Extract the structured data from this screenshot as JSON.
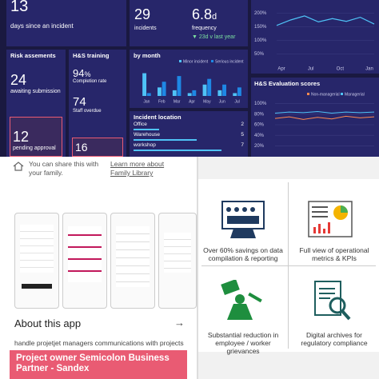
{
  "dashboard": {
    "days": {
      "value": 13,
      "label": "days since an incident"
    },
    "incidents": {
      "value": 29,
      "label": "incidents"
    },
    "frequency": {
      "value": 6.8,
      "unit": "d",
      "label": "frequency",
      "change": "▼ 23d v last year"
    },
    "trend": {
      "ylim": [
        25,
        225
      ],
      "yticks": [
        {
          "value": 200,
          "label": "200%"
        },
        {
          "value": 150,
          "label": "150%"
        },
        {
          "value": 100,
          "label": "100%"
        },
        {
          "value": 50,
          "label": "50%"
        }
      ],
      "months": [
        "Apr",
        "Jul",
        "Oct",
        "Jan"
      ],
      "values": [
        155,
        175,
        190,
        168,
        180,
        170,
        185,
        160
      ],
      "color": "#4fc3f7"
    },
    "risk": {
      "title": "Risk assements",
      "awaiting": 24,
      "awaiting_label": "awaiting submission",
      "pending": 12,
      "pending_label": "pending approval"
    },
    "training": {
      "title": "H&S training",
      "completion": 94,
      "completion_unit": "%",
      "completion_label": "Completion rate",
      "overdue": 74,
      "overdue_label": "Staff overdue",
      "other": 16
    },
    "by_month": {
      "title": "by month",
      "ylim": [
        0,
        9
      ],
      "months": [
        "Jan",
        "Feb",
        "Mar",
        "Apr",
        "May",
        "Jun",
        "Jul"
      ],
      "series": [
        {
          "name": "Minor incident",
          "color": "#4fc3f7",
          "values": [
            8,
            3,
            2,
            1,
            4,
            2,
            1
          ]
        },
        {
          "name": "Serious incident",
          "color": "#1e88e5",
          "values": [
            1,
            5,
            7,
            2,
            6,
            4,
            3
          ]
        }
      ]
    },
    "location": {
      "title": "Incident location",
      "xlim": [
        0,
        8
      ],
      "items": [
        {
          "name": "Office",
          "value": 2
        },
        {
          "name": "Warehouse",
          "value": 5
        },
        {
          "name": "workshop",
          "value": 7
        }
      ]
    },
    "evaluation": {
      "title": "H&S Evaluation scores",
      "ylim": [
        10,
        110
      ],
      "yticks": [
        {
          "value": 100,
          "label": "100%"
        },
        {
          "value": 80,
          "label": "80%"
        },
        {
          "value": 60,
          "label": "60%"
        },
        {
          "value": 40,
          "label": "40%"
        },
        {
          "value": 20,
          "label": "20%"
        }
      ],
      "series": [
        {
          "name": "Non-managerial",
          "color": "#ff8a50",
          "values": [
            72,
            75,
            70,
            74,
            71,
            76,
            73,
            75
          ]
        },
        {
          "name": "Managerial",
          "color": "#4fc3f7",
          "values": [
            82,
            84,
            83,
            85,
            82,
            84,
            83,
            84
          ]
        }
      ]
    }
  },
  "app": {
    "share": "You can share this with your family.",
    "link": "Learn more about Family Library",
    "about": "About this app",
    "description": "handle projetjet managers communications with projects",
    "banner": "Project owner Semicolon Business Partner - Sandex"
  },
  "benefits": [
    "Over 60% savings on data compilation & reporting",
    "Full view of operational metrics & KPIs",
    "Substantial reduction in employee / worker grievances",
    "Digital archives for regulatory compliance"
  ]
}
